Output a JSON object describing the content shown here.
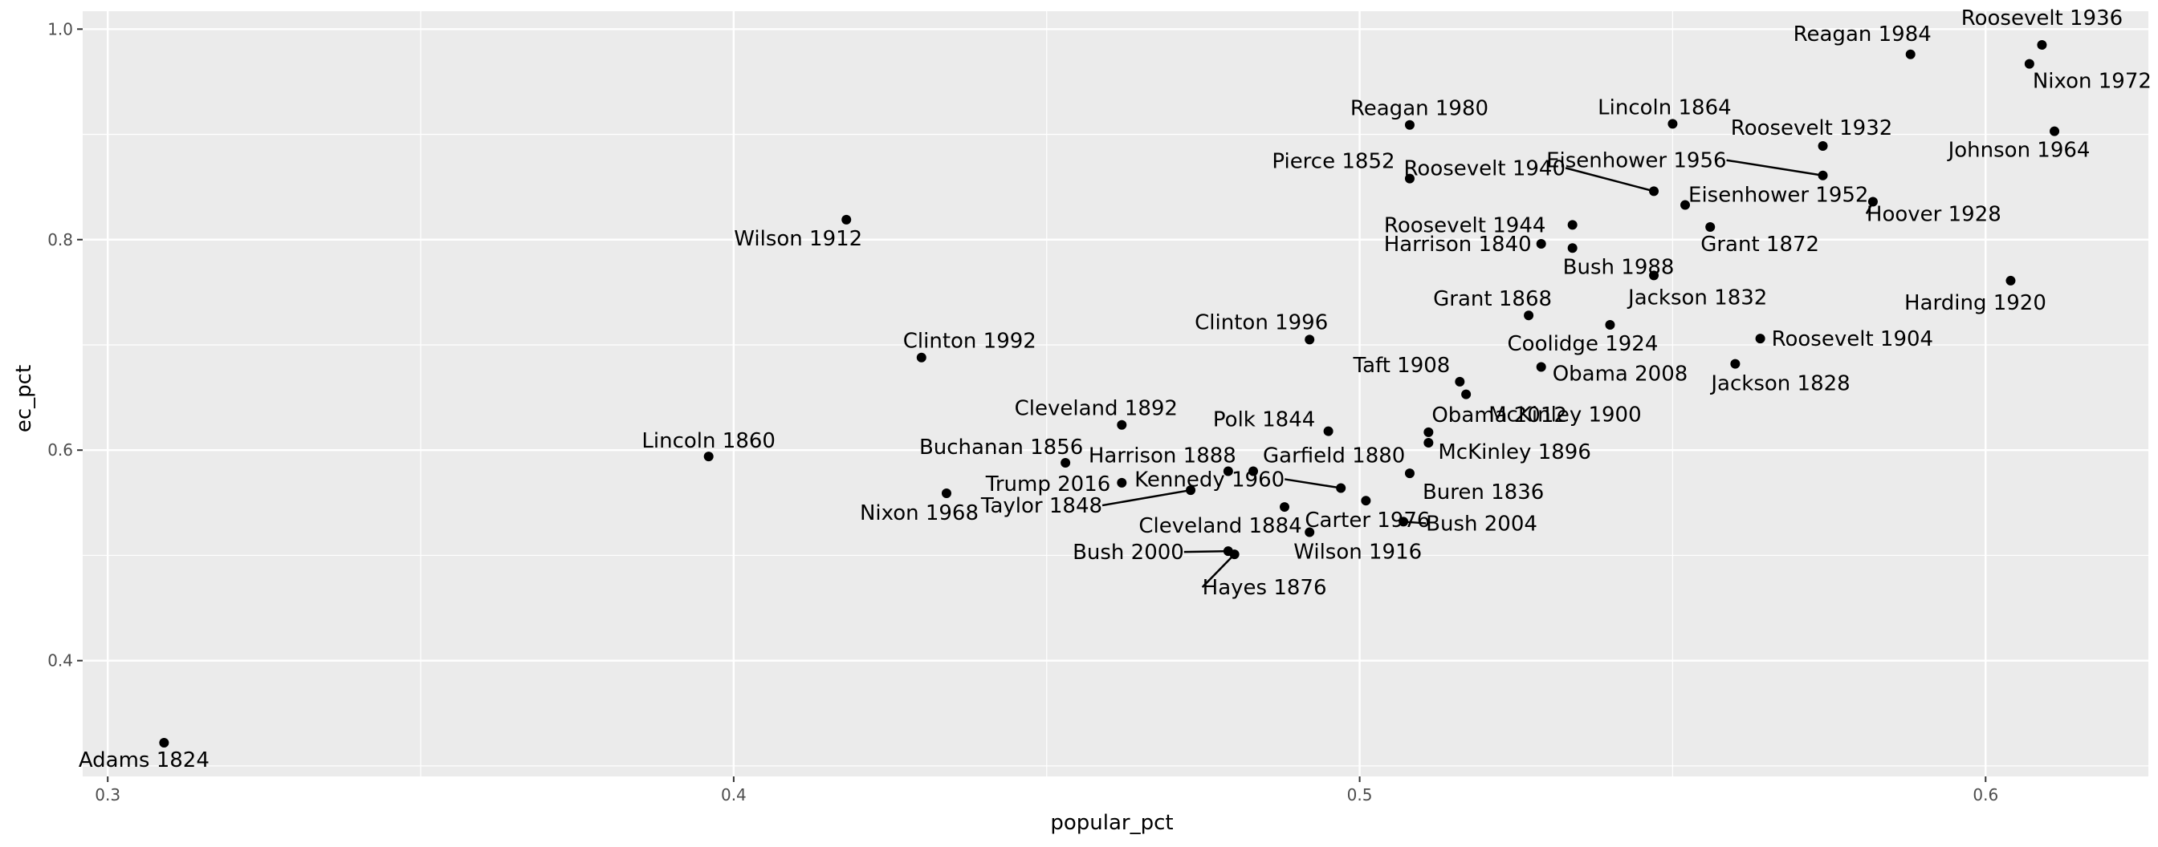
{
  "chart_data": {
    "type": "scatter",
    "title": "",
    "xlabel": "popular_pct",
    "ylabel": "ec_pct",
    "xlim": [
      0.296,
      0.626
    ],
    "ylim": [
      0.29,
      1.017
    ],
    "x_ticks": [
      0.3,
      0.4,
      0.5,
      0.6
    ],
    "x_tick_labels": [
      "0.3",
      "0.4",
      "0.5",
      "0.6"
    ],
    "y_ticks": [
      0.4,
      0.6,
      0.8,
      1.0
    ],
    "y_tick_labels": [
      "0.4",
      "0.6",
      "0.8",
      "1.0"
    ],
    "grid": true,
    "background": "#EBEBEB",
    "gridline_color": "#FFFFFF",
    "point_color": "#000000",
    "points": [
      {
        "label": "Roosevelt 1936",
        "x": 0.609,
        "y": 0.985
      },
      {
        "label": "Reagan 1984",
        "x": 0.588,
        "y": 0.976
      },
      {
        "label": "Nixon 1972",
        "x": 0.607,
        "y": 0.967
      },
      {
        "label": "Reagan 1980",
        "x": 0.508,
        "y": 0.909
      },
      {
        "label": "Lincoln 1864",
        "x": 0.55,
        "y": 0.91
      },
      {
        "label": "Roosevelt 1932",
        "x": 0.574,
        "y": 0.889
      },
      {
        "label": "Johnson 1964",
        "x": 0.611,
        "y": 0.903
      },
      {
        "label": "Eisenhower 1956",
        "x": 0.574,
        "y": 0.861
      },
      {
        "label": "Pierce 1852",
        "x": 0.508,
        "y": 0.858
      },
      {
        "label": "Roosevelt 1940",
        "x": 0.547,
        "y": 0.846
      },
      {
        "label": "Eisenhower 1952",
        "x": 0.552,
        "y": 0.833
      },
      {
        "label": "Hoover 1928",
        "x": 0.582,
        "y": 0.836
      },
      {
        "label": "Roosevelt 1944",
        "x": 0.534,
        "y": 0.814
      },
      {
        "label": "Grant 1872",
        "x": 0.556,
        "y": 0.812
      },
      {
        "label": "Wilson 1912",
        "x": 0.418,
        "y": 0.819
      },
      {
        "label": "Harrison 1840",
        "x": 0.529,
        "y": 0.796
      },
      {
        "label": "Bush 1988",
        "x": 0.534,
        "y": 0.792
      },
      {
        "label": "Jackson 1832",
        "x": 0.547,
        "y": 0.766
      },
      {
        "label": "Harding 1920",
        "x": 0.604,
        "y": 0.761
      },
      {
        "label": "Grant 1868",
        "x": 0.527,
        "y": 0.728
      },
      {
        "label": "Coolidge 1924",
        "x": 0.54,
        "y": 0.719
      },
      {
        "label": "Roosevelt 1904",
        "x": 0.564,
        "y": 0.706
      },
      {
        "label": "Clinton 1996",
        "x": 0.492,
        "y": 0.705
      },
      {
        "label": "Clinton 1992",
        "x": 0.43,
        "y": 0.688
      },
      {
        "label": "Jackson 1828",
        "x": 0.56,
        "y": 0.682
      },
      {
        "label": "Obama 2008",
        "x": 0.529,
        "y": 0.679
      },
      {
        "label": "Taft 1908",
        "x": 0.516,
        "y": 0.665
      },
      {
        "label": "McKinley 1900",
        "x": 0.517,
        "y": 0.653
      },
      {
        "label": "Cleveland 1892",
        "x": 0.462,
        "y": 0.624
      },
      {
        "label": "Polk 1844",
        "x": 0.495,
        "y": 0.618
      },
      {
        "label": "Obama 2012",
        "x": 0.511,
        "y": 0.617
      },
      {
        "label": "McKinley 1896",
        "x": 0.511,
        "y": 0.607
      },
      {
        "label": "Lincoln 1860",
        "x": 0.396,
        "y": 0.594
      },
      {
        "label": "Buchanan 1856",
        "x": 0.453,
        "y": 0.588
      },
      {
        "label": "Harrison 1888",
        "x": 0.479,
        "y": 0.58
      },
      {
        "label": "Garfield 1880",
        "x": 0.483,
        "y": 0.58
      },
      {
        "label": "Buren 1836",
        "x": 0.508,
        "y": 0.578
      },
      {
        "label": "Trump 2016",
        "x": 0.462,
        "y": 0.569
      },
      {
        "label": "Kennedy 1960",
        "x": 0.497,
        "y": 0.564
      },
      {
        "label": "Nixon 1968",
        "x": 0.434,
        "y": 0.559
      },
      {
        "label": "Taylor 1848",
        "x": 0.473,
        "y": 0.562
      },
      {
        "label": "Carter 1976",
        "x": 0.501,
        "y": 0.552
      },
      {
        "label": "Cleveland 1884",
        "x": 0.488,
        "y": 0.546
      },
      {
        "label": "Bush 2004",
        "x": 0.507,
        "y": 0.532
      },
      {
        "label": "Wilson 1916",
        "x": 0.492,
        "y": 0.522
      },
      {
        "label": "Bush 2000",
        "x": 0.479,
        "y": 0.504
      },
      {
        "label": "Hayes 1876",
        "x": 0.48,
        "y": 0.501
      },
      {
        "label": "Adams 1824",
        "x": 0.309,
        "y": 0.322
      }
    ]
  }
}
